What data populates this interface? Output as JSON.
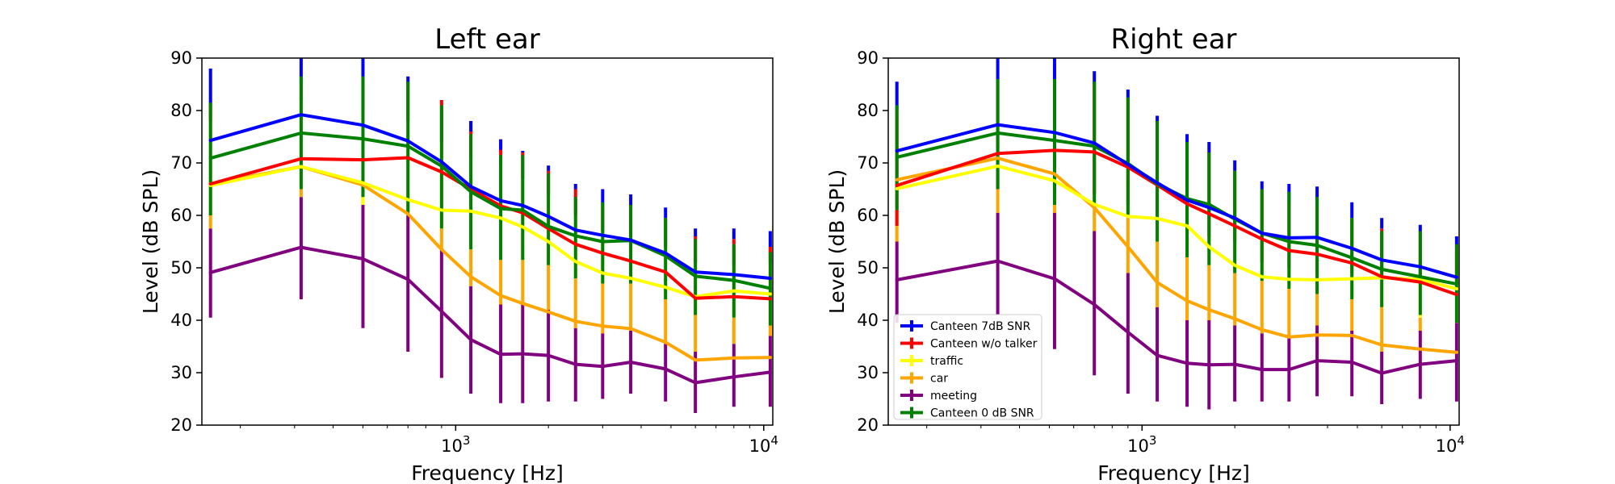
{
  "chart_data": [
    {
      "type": "line",
      "title": "Left ear",
      "xlabel": "Frequency [Hz]",
      "ylabel": "Level (dB SPL)",
      "xscale": "log",
      "xlim": [
        150,
        10700
      ],
      "ylim": [
        20,
        90
      ],
      "yticks": [
        20,
        30,
        40,
        50,
        60,
        70,
        80,
        90
      ],
      "xticks": [
        {
          "value": 1000,
          "base": "10",
          "exp": "3"
        },
        {
          "value": 10000,
          "base": "10",
          "exp": "4"
        }
      ],
      "grid": false,
      "x": [
        160,
        315,
        500,
        700,
        900,
        1120,
        1400,
        1650,
        2000,
        2450,
        3000,
        3700,
        4800,
        6000,
        8000,
        10500
      ],
      "series": [
        {
          "name": "Canteen 7dB SNR",
          "color": "#0000ff",
          "values": [
            74.3,
            79.2,
            77.2,
            74.2,
            70.2,
            65.5,
            62.8,
            61.9,
            59.8,
            57.2,
            56.2,
            55.3,
            52.8,
            49.2,
            48.7,
            48.0
          ],
          "upper": [
            88,
            90,
            90,
            86.5,
            82,
            76,
            72.5,
            72.3,
            69.5,
            66,
            65,
            64,
            61.5,
            57.5,
            57.5,
            57
          ]
        },
        {
          "name": "Canteen w/o talker",
          "color": "#ff0000",
          "values": [
            66.0,
            70.8,
            70.6,
            71.0,
            68.3,
            65.0,
            61.8,
            60.5,
            57.5,
            54.5,
            52.8,
            51.3,
            49.2,
            44.2,
            44.5,
            44.1
          ],
          "upper": [
            81,
            85,
            85,
            85,
            82,
            78,
            74.5,
            72,
            68.5,
            65,
            62,
            62,
            59.5,
            56,
            55.5,
            54
          ]
        },
        {
          "name": "traffic",
          "color": "#ffff00",
          "values": [
            65.7,
            69.3,
            66.2,
            63.0,
            61.0,
            60.8,
            59.5,
            57.8,
            55.0,
            51.2,
            49.0,
            48.0,
            46.3,
            44.5,
            45.6,
            45.0
          ],
          "upper": [
            78,
            82,
            80,
            78,
            74,
            71,
            69.5,
            67,
            64,
            60,
            57,
            56,
            54,
            51,
            50.5,
            51
          ]
        },
        {
          "name": "car",
          "color": "#ffa500",
          "values": [
            66.0,
            69.3,
            65.8,
            60.3,
            53.5,
            48.3,
            44.7,
            43.2,
            41.6,
            39.8,
            38.9,
            38.4,
            35.8,
            32.4,
            32.8,
            32.9
          ],
          "upper": [
            60.5,
            65,
            62,
            61,
            57.5,
            53.5,
            51.5,
            51.5,
            50.5,
            48,
            47,
            47,
            44,
            41,
            40.5,
            39
          ]
        },
        {
          "name": "meeting",
          "color": "#800080",
          "values": [
            49.1,
            53.9,
            51.7,
            47.8,
            41.7,
            36.3,
            33.5,
            33.6,
            33.3,
            31.6,
            31.2,
            32.0,
            30.7,
            28.1,
            29.2,
            30.1
          ],
          "upper": [
            57.5,
            63.5,
            64,
            60,
            53.5,
            46.5,
            43,
            43,
            42,
            38.5,
            37.5,
            38,
            35.5,
            34,
            35.5,
            37
          ]
        },
        {
          "name": "Canteen 0 dB SNR",
          "color": "#008000",
          "values": [
            70.9,
            75.7,
            74.6,
            73.2,
            69.4,
            64.5,
            61.3,
            61.0,
            57.9,
            56.1,
            55.0,
            55.2,
            52.3,
            48.4,
            47.6,
            46.1
          ],
          "upper": [
            81.5,
            86.5,
            86.5,
            85.5,
            81,
            75.5,
            71.5,
            71.5,
            68,
            63.5,
            62.5,
            62,
            59.5,
            55.5,
            54.5,
            53
          ],
          "lower": [
            60,
            65,
            63.5,
            60.5,
            57.5,
            53.5,
            51.5,
            51.5,
            50.5,
            48,
            47,
            47,
            44,
            41,
            40.5,
            39
          ]
        }
      ],
      "bar_lower": [
        40.5,
        44,
        38.5,
        34,
        29,
        26,
        24.2,
        24.2,
        24.5,
        24.5,
        25,
        26,
        24.5,
        22.3,
        23.5,
        23.5
      ]
    },
    {
      "type": "line",
      "title": "Right ear",
      "xlabel": "Frequency [Hz]",
      "ylabel": "Level (dB SPL)",
      "xscale": "log",
      "xlim": [
        150,
        10700
      ],
      "ylim": [
        20,
        90
      ],
      "yticks": [
        20,
        30,
        40,
        50,
        60,
        70,
        80,
        90
      ],
      "xticks": [
        {
          "value": 1000,
          "base": "10",
          "exp": "3"
        },
        {
          "value": 10000,
          "base": "10",
          "exp": "4"
        }
      ],
      "grid": false,
      "legend": "lower-left",
      "x": [
        160,
        340,
        520,
        700,
        900,
        1120,
        1400,
        1650,
        2000,
        2450,
        3000,
        3700,
        4800,
        6000,
        8000,
        10500
      ],
      "series": [
        {
          "name": "Canteen 7dB SNR",
          "color": "#0000ff",
          "values": [
            72.3,
            77.3,
            75.8,
            73.8,
            69.7,
            66.2,
            62.9,
            61.5,
            59.5,
            56.6,
            55.7,
            55.8,
            53.7,
            51.5,
            50.2,
            48.2
          ],
          "upper": [
            85.5,
            90,
            90,
            87.5,
            84,
            79,
            75.5,
            74,
            70.5,
            66.5,
            66,
            65.5,
            62.5,
            59.5,
            58.2,
            56
          ]
        },
        {
          "name": "Canteen w/o talker",
          "color": "#ff0000",
          "values": [
            65.7,
            71.8,
            72.4,
            72.1,
            69.2,
            65.8,
            62.2,
            60.3,
            58.0,
            55.5,
            53.3,
            52.6,
            50.9,
            48.3,
            47.3,
            44.9
          ],
          "upper": [
            80,
            85.5,
            85.5,
            85,
            82,
            77.5,
            74,
            72,
            68.5,
            65,
            62.5,
            62,
            59.5,
            57.5,
            57,
            54
          ]
        },
        {
          "name": "traffic",
          "color": "#ffff00",
          "values": [
            65.1,
            69.4,
            66.6,
            62.1,
            59.8,
            59.4,
            58.0,
            54.0,
            50.5,
            48.3,
            47.8,
            47.7,
            47.9,
            48.1,
            47.8,
            46.0
          ],
          "upper": [
            58,
            65,
            64,
            64,
            62,
            60,
            58,
            56,
            55,
            51,
            50,
            49,
            49,
            49,
            48,
            47
          ]
        },
        {
          "name": "car",
          "color": "#ffa500",
          "values": [
            66.8,
            70.9,
            67.9,
            61.5,
            54.0,
            47.2,
            43.7,
            42.0,
            40.3,
            38.2,
            36.8,
            37.2,
            37.1,
            35.3,
            34.5,
            33.9
          ],
          "upper": [
            61,
            65,
            62,
            61.5,
            60,
            55,
            52,
            50.5,
            49,
            47.5,
            46,
            45,
            44,
            42.5,
            40.5,
            39.5
          ]
        },
        {
          "name": "meeting",
          "color": "#800080",
          "values": [
            47.7,
            51.3,
            47.9,
            43.0,
            37.7,
            33.3,
            31.8,
            31.5,
            31.6,
            30.6,
            30.6,
            32.3,
            32.0,
            29.9,
            31.6,
            32.3
          ],
          "upper": [
            55,
            60.5,
            60.5,
            57,
            49,
            42.5,
            40,
            40,
            39,
            37.5,
            37,
            39,
            38,
            34,
            38,
            39.5
          ]
        },
        {
          "name": "Canteen 0 dB SNR",
          "color": "#008000",
          "values": [
            71.1,
            75.7,
            74.3,
            73.2,
            69.9,
            66.0,
            63.2,
            62.1,
            59.3,
            56.6,
            55.0,
            54.3,
            51.9,
            49.7,
            48.3,
            46.9
          ],
          "upper": [
            81,
            86,
            86,
            85.5,
            82.5,
            78,
            74,
            72,
            68.5,
            65,
            64.5,
            63.5,
            59.5,
            57,
            57,
            54.5
          ],
          "lower": [
            61,
            65,
            62,
            61.5,
            60,
            55,
            52,
            50.5,
            49,
            47.5,
            46,
            45,
            44,
            42.5,
            41,
            39.5
          ]
        }
      ],
      "bar_lower": [
        39.5,
        41,
        34.5,
        29.5,
        26,
        24.5,
        23.5,
        23,
        24.5,
        24.5,
        24.5,
        25.5,
        25.5,
        24,
        25,
        24.5
      ]
    }
  ]
}
